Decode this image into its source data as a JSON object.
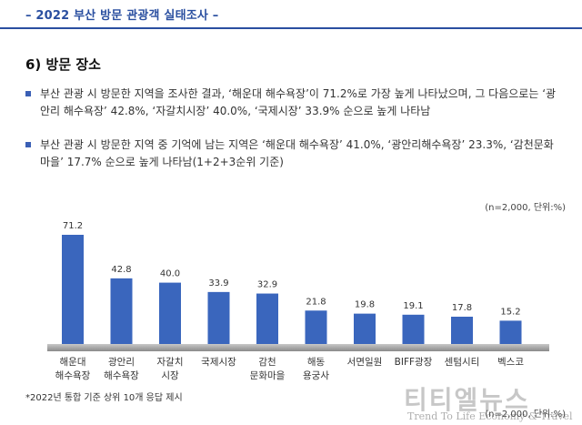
{
  "header": {
    "title": "– 2022 부산 방문 관광객 실태조사 –"
  },
  "section": {
    "title": "6) 방문 장소"
  },
  "bullets": [
    "부산 관광 시 방문한 지역을 조사한 결과, ‘해운대 해수욕장’이 71.2%로 가장 높게 나타났으며, 그 다음으로는 ‘광안리 해수욕장’ 42.8%, ‘자갈치시장’ 40.0%, ‘국제시장’ 33.9% 순으로 높게 나타남",
    "부산 관광 시 방문한 지역 중 기억에 남는 지역은 ‘해운대 해수욕장’ 41.0%, ‘광안리해수욕장’ 23.3%, ‘감천문화마을’ 17.7% 순으로 높게 나타남(1+2+3순위 기준)"
  ],
  "unit_note": "(n=2,000, 단위:%)",
  "footnote": "*2022년 통합 기준 상위 10개 응답 제시",
  "watermark": {
    "text": "티티엘뉴스",
    "sub": "Trend To Life Economy & Travel"
  },
  "colors": {
    "bar": "#3a66bd",
    "baseline": "#9a9a9a",
    "accent": "#2a4fa0"
  },
  "chart_data": {
    "type": "bar",
    "categories": [
      [
        "해운대",
        "해수욕장"
      ],
      [
        "광안리",
        "해수욕장"
      ],
      [
        "자갈치",
        "시장"
      ],
      [
        "국제시장"
      ],
      [
        "감천",
        "문화마을"
      ],
      [
        "해동",
        "용궁사"
      ],
      [
        "서면일원"
      ],
      [
        "BIFF광장"
      ],
      [
        "센텀시티"
      ],
      [
        "벡스코"
      ]
    ],
    "values": [
      71.2,
      42.8,
      40.0,
      33.9,
      32.9,
      21.8,
      19.8,
      19.1,
      17.8,
      15.2
    ],
    "value_labels": [
      "71.2",
      "42.8",
      "40.0",
      "33.9",
      "32.9",
      "21.8",
      "19.8",
      "19.1",
      "17.8",
      "15.2"
    ],
    "ylim": [
      0,
      71.2
    ],
    "grid": false,
    "legend": "none",
    "title": "",
    "xlabel": "",
    "ylabel": ""
  }
}
